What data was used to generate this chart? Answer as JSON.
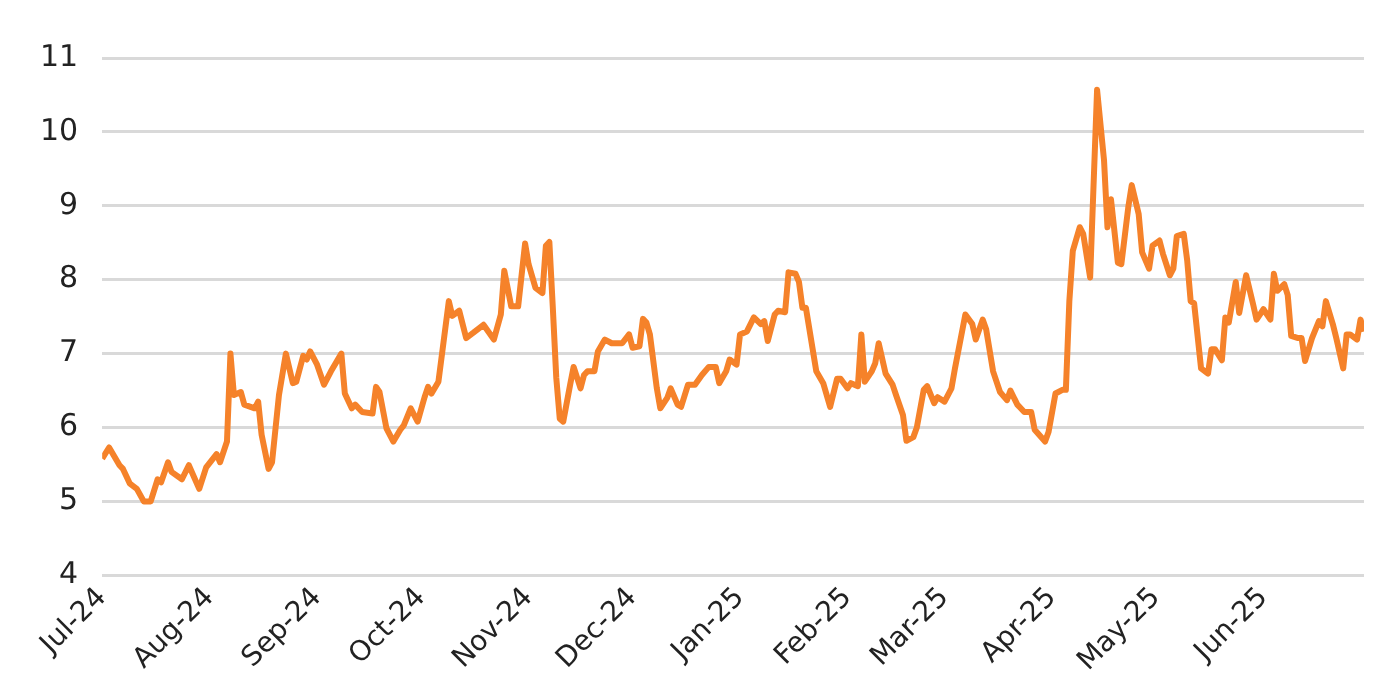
{
  "chart_data": {
    "type": "line",
    "x": [
      "2024-07-01",
      "2024-07-03",
      "2024-07-06",
      "2024-07-07",
      "2024-07-09",
      "2024-07-11",
      "2024-07-13",
      "2024-07-15",
      "2024-07-17",
      "2024-07-18",
      "2024-07-20",
      "2024-07-21",
      "2024-07-24",
      "2024-07-26",
      "2024-07-29",
      "2024-07-31",
      "2024-08-03",
      "2024-08-04",
      "2024-08-06",
      "2024-08-07",
      "2024-08-08",
      "2024-08-10",
      "2024-08-11",
      "2024-08-14",
      "2024-08-15",
      "2024-08-16",
      "2024-08-18",
      "2024-08-19",
      "2024-08-21",
      "2024-08-23",
      "2024-08-25",
      "2024-08-26",
      "2024-08-28",
      "2024-08-29",
      "2024-08-30",
      "2024-09-01",
      "2024-09-03",
      "2024-09-05",
      "2024-09-08",
      "2024-09-09",
      "2024-09-11",
      "2024-09-12",
      "2024-09-14",
      "2024-09-17",
      "2024-09-18",
      "2024-09-19",
      "2024-09-21",
      "2024-09-23",
      "2024-09-25",
      "2024-09-26",
      "2024-09-28",
      "2024-09-30",
      "2024-10-02",
      "2024-10-03",
      "2024-10-04",
      "2024-10-06",
      "2024-10-09",
      "2024-10-10",
      "2024-10-12",
      "2024-10-14",
      "2024-10-16",
      "2024-10-19",
      "2024-10-22",
      "2024-10-24",
      "2024-10-25",
      "2024-10-27",
      "2024-10-29",
      "2024-10-31",
      "2024-11-01",
      "2024-11-03",
      "2024-11-05",
      "2024-11-06",
      "2024-11-07",
      "2024-11-08",
      "2024-11-09",
      "2024-11-10",
      "2024-11-11",
      "2024-11-13",
      "2024-11-14",
      "2024-11-16",
      "2024-11-17",
      "2024-11-18",
      "2024-11-20",
      "2024-11-21",
      "2024-11-23",
      "2024-11-25",
      "2024-11-28",
      "2024-11-30",
      "2024-12-01",
      "2024-12-03",
      "2024-12-04",
      "2024-12-05",
      "2024-12-06",
      "2024-12-08",
      "2024-12-09",
      "2024-12-11",
      "2024-12-12",
      "2024-12-14",
      "2024-12-15",
      "2024-12-17",
      "2024-12-19",
      "2024-12-21",
      "2024-12-23",
      "2024-12-25",
      "2024-12-26",
      "2024-12-28",
      "2024-12-29",
      "2024-12-31",
      "2025-01-01",
      "2025-01-03",
      "2025-01-05",
      "2025-01-07",
      "2025-01-08",
      "2025-01-09",
      "2025-01-11",
      "2025-01-12",
      "2025-01-14",
      "2025-01-15",
      "2025-01-17",
      "2025-01-18",
      "2025-01-19",
      "2025-01-20",
      "2025-01-23",
      "2025-01-25",
      "2025-01-27",
      "2025-01-29",
      "2025-01-30",
      "2025-02-01",
      "2025-02-02",
      "2025-02-04",
      "2025-02-05",
      "2025-02-06",
      "2025-02-08",
      "2025-02-09",
      "2025-02-10",
      "2025-02-12",
      "2025-02-14",
      "2025-02-15",
      "2025-02-17",
      "2025-02-18",
      "2025-02-20",
      "2025-02-21",
      "2025-02-23",
      "2025-02-24",
      "2025-02-26",
      "2025-02-27",
      "2025-03-01",
      "2025-03-03",
      "2025-03-04",
      "2025-03-07",
      "2025-03-09",
      "2025-03-10",
      "2025-03-12",
      "2025-03-13",
      "2025-03-15",
      "2025-03-17",
      "2025-03-19",
      "2025-03-20",
      "2025-03-22",
      "2025-03-24",
      "2025-03-26",
      "2025-03-27",
      "2025-03-30",
      "2025-03-31",
      "2025-04-02",
      "2025-04-04",
      "2025-04-05",
      "2025-04-06",
      "2025-04-07",
      "2025-04-09",
      "2025-04-10",
      "2025-04-12",
      "2025-04-14",
      "2025-04-16",
      "2025-04-17",
      "2025-04-18",
      "2025-04-20",
      "2025-04-21",
      "2025-04-23",
      "2025-04-24",
      "2025-04-26",
      "2025-04-27",
      "2025-04-29",
      "2025-04-30",
      "2025-05-02",
      "2025-05-03",
      "2025-05-05",
      "2025-05-06",
      "2025-05-07",
      "2025-05-09",
      "2025-05-10",
      "2025-05-11",
      "2025-05-12",
      "2025-05-14",
      "2025-05-16",
      "2025-05-17",
      "2025-05-18",
      "2025-05-20",
      "2025-05-21",
      "2025-05-22",
      "2025-05-24",
      "2025-05-25",
      "2025-05-27",
      "2025-05-29",
      "2025-05-30",
      "2025-06-01",
      "2025-06-03",
      "2025-06-04",
      "2025-06-05",
      "2025-06-07",
      "2025-06-08",
      "2025-06-09",
      "2025-06-11",
      "2025-06-12",
      "2025-06-13",
      "2025-06-15",
      "2025-06-17",
      "2025-06-18",
      "2025-06-19",
      "2025-06-21",
      "2025-06-22",
      "2025-06-24",
      "2025-06-25",
      "2025-06-26",
      "2025-06-28",
      "2025-06-29",
      "2025-06-30"
    ],
    "series": [
      {
        "color": "#f5822a",
        "values": [
          5.58,
          5.73,
          5.49,
          5.44,
          5.24,
          5.17,
          5.0,
          5.0,
          5.3,
          5.26,
          5.53,
          5.4,
          5.3,
          5.49,
          5.17,
          5.46,
          5.64,
          5.53,
          5.81,
          7.0,
          6.44,
          6.48,
          6.31,
          6.26,
          6.35,
          5.9,
          5.44,
          5.53,
          6.44,
          7.0,
          6.6,
          6.62,
          6.97,
          6.92,
          7.03,
          6.85,
          6.58,
          6.76,
          7.0,
          6.46,
          6.26,
          6.31,
          6.21,
          6.19,
          6.55,
          6.48,
          5.99,
          5.81,
          5.97,
          6.03,
          6.26,
          6.08,
          6.41,
          6.55,
          6.46,
          6.62,
          7.71,
          7.51,
          7.58,
          7.21,
          7.28,
          7.39,
          7.19,
          7.53,
          8.12,
          7.64,
          7.64,
          8.49,
          8.21,
          7.89,
          7.82,
          8.46,
          8.51,
          7.62,
          6.67,
          6.12,
          6.08,
          6.58,
          6.82,
          6.53,
          6.71,
          6.76,
          6.76,
          7.03,
          7.19,
          7.14,
          7.14,
          7.26,
          7.08,
          7.1,
          7.47,
          7.42,
          7.26,
          6.53,
          6.26,
          6.4,
          6.53,
          6.31,
          6.28,
          6.58,
          6.58,
          6.71,
          6.82,
          6.82,
          6.6,
          6.76,
          6.92,
          6.85,
          7.26,
          7.3,
          7.49,
          7.4,
          7.44,
          7.17,
          7.53,
          7.58,
          7.56,
          8.1,
          8.08,
          7.97,
          7.62,
          7.62,
          6.76,
          6.6,
          6.28,
          6.66,
          6.66,
          6.53,
          6.6,
          6.56,
          7.26,
          6.62,
          6.76,
          6.87,
          7.14,
          6.73,
          6.58,
          6.44,
          6.17,
          5.82,
          5.87,
          6.0,
          6.51,
          6.56,
          6.33,
          6.41,
          6.35,
          6.53,
          6.8,
          7.53,
          7.4,
          7.19,
          7.46,
          7.33,
          6.76,
          6.48,
          6.37,
          6.5,
          6.31,
          6.21,
          6.21,
          5.97,
          5.81,
          5.94,
          6.46,
          6.51,
          6.51,
          7.71,
          8.39,
          8.71,
          8.62,
          8.03,
          10.57,
          9.62,
          8.71,
          9.09,
          8.23,
          8.21,
          8.98,
          9.28,
          8.89,
          8.37,
          8.15,
          8.46,
          8.53,
          8.35,
          8.06,
          8.15,
          8.59,
          8.62,
          8.26,
          7.71,
          7.68,
          6.8,
          6.73,
          7.06,
          7.06,
          6.91,
          7.49,
          7.42,
          7.97,
          7.55,
          8.06,
          7.67,
          7.46,
          7.6,
          7.46,
          8.08,
          7.85,
          7.94,
          7.79,
          7.24,
          7.21,
          7.21,
          6.9,
          7.21,
          7.44,
          7.37,
          7.71,
          7.4,
          7.21,
          6.8,
          7.26,
          7.26,
          7.19,
          7.46,
          7.3
        ]
      }
    ],
    "xlim": [
      "2024-07-01",
      "2025-06-30"
    ],
    "xticks": [
      {
        "value": "2024-07-01",
        "label": "Jul-24"
      },
      {
        "value": "2024-08-01",
        "label": "Aug-24"
      },
      {
        "value": "2024-09-01",
        "label": "Sep-24"
      },
      {
        "value": "2024-10-01",
        "label": "Oct-24"
      },
      {
        "value": "2024-11-01",
        "label": "Nov-24"
      },
      {
        "value": "2024-12-01",
        "label": "Dec-24"
      },
      {
        "value": "2025-01-01",
        "label": "Jan-25"
      },
      {
        "value": "2025-02-01",
        "label": "Feb-25"
      },
      {
        "value": "2025-03-01",
        "label": "Mar-25"
      },
      {
        "value": "2025-04-01",
        "label": "Apr-25"
      },
      {
        "value": "2025-05-01",
        "label": "May-25"
      },
      {
        "value": "2025-06-01",
        "label": "Jun-25"
      }
    ],
    "ylim": [
      4,
      11
    ],
    "yticks": [
      4,
      5,
      6,
      7,
      8,
      9,
      10,
      11
    ],
    "grid": "y",
    "legend": false,
    "marker": "none",
    "line_style": "solid"
  }
}
